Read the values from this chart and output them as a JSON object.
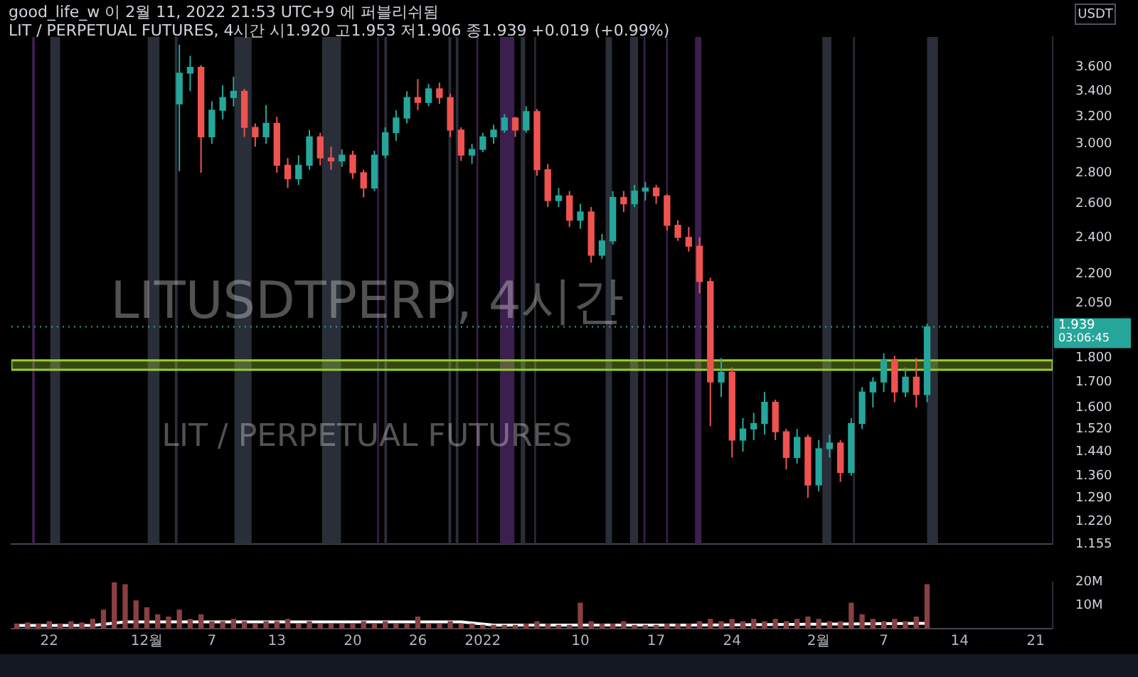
{
  "chart_data": [
    {
      "type": "candlestick",
      "title": "LITUSDTPERP, 4시간",
      "subtitle": "LIT / PERPETUAL FUTURES",
      "ylabel": "USDT",
      "annotations": [
        "good_life_w 이 2월 11, 2022 21:53 UTC+9 에 퍼블리쉬됨",
        "LIT / PERPETUAL FUTURES, 4시간 시1.920 고1.953 저1.906 종1.939 +0.019 (+0.99%)"
      ],
      "x": [
        "2021-12-04",
        "2021-12-05",
        "2021-12-06",
        "2021-12-07",
        "2021-12-08",
        "2021-12-09",
        "2021-12-10",
        "2021-12-11",
        "2021-12-12",
        "2021-12-13",
        "2021-12-14",
        "2021-12-15",
        "2021-12-16",
        "2021-12-17",
        "2021-12-18",
        "2021-12-19",
        "2021-12-20",
        "2021-12-21",
        "2021-12-22",
        "2021-12-23",
        "2021-12-24",
        "2021-12-25",
        "2021-12-26",
        "2021-12-27",
        "2021-12-28",
        "2021-12-29",
        "2021-12-30",
        "2021-12-31",
        "2022-01-01",
        "2022-01-02",
        "2022-01-03",
        "2022-01-04",
        "2022-01-05",
        "2022-01-06",
        "2022-01-07",
        "2022-01-08",
        "2022-01-09",
        "2022-01-10",
        "2022-01-11",
        "2022-01-12",
        "2022-01-13",
        "2022-01-14",
        "2022-01-15",
        "2022-01-16",
        "2022-01-17",
        "2022-01-18",
        "2022-01-19",
        "2022-01-20",
        "2022-01-21",
        "2022-01-22",
        "2022-01-23",
        "2022-01-24",
        "2022-01-25",
        "2022-01-26",
        "2022-01-27",
        "2022-01-28",
        "2022-01-29",
        "2022-01-30",
        "2022-01-31",
        "2022-02-01",
        "2022-02-02",
        "2022-02-03",
        "2022-02-04",
        "2022-02-05",
        "2022-02-06",
        "2022-02-07",
        "2022-02-08",
        "2022-02-09",
        "2022-02-10",
        "2022-02-11"
      ],
      "ohlc": [
        [
          3.3,
          3.8,
          2.81,
          3.55
        ],
        [
          3.55,
          3.7,
          3.4,
          3.6
        ],
        [
          3.6,
          3.62,
          2.8,
          3.05
        ],
        [
          3.05,
          3.32,
          3.0,
          3.25
        ],
        [
          3.25,
          3.45,
          3.18,
          3.35
        ],
        [
          3.35,
          3.52,
          3.28,
          3.4
        ],
        [
          3.4,
          3.42,
          3.05,
          3.12
        ],
        [
          3.12,
          3.15,
          2.98,
          3.05
        ],
        [
          3.05,
          3.29,
          3.0,
          3.15
        ],
        [
          3.15,
          3.2,
          2.8,
          2.85
        ],
        [
          2.85,
          2.9,
          2.7,
          2.76
        ],
        [
          2.76,
          2.92,
          2.72,
          2.85
        ],
        [
          2.85,
          3.1,
          2.82,
          3.05
        ],
        [
          3.05,
          3.08,
          2.85,
          2.9
        ],
        [
          2.9,
          2.98,
          2.82,
          2.88
        ],
        [
          2.88,
          2.96,
          2.84,
          2.92
        ],
        [
          2.92,
          2.95,
          2.76,
          2.8
        ],
        [
          2.8,
          2.82,
          2.64,
          2.7
        ],
        [
          2.7,
          2.95,
          2.68,
          2.92
        ],
        [
          2.92,
          3.12,
          2.9,
          3.08
        ],
        [
          3.08,
          3.25,
          3.02,
          3.19
        ],
        [
          3.19,
          3.4,
          3.15,
          3.35
        ],
        [
          3.35,
          3.5,
          3.25,
          3.31
        ],
        [
          3.31,
          3.46,
          3.28,
          3.42
        ],
        [
          3.42,
          3.47,
          3.3,
          3.35
        ],
        [
          3.35,
          3.38,
          3.05,
          3.1
        ],
        [
          3.1,
          3.12,
          2.88,
          2.92
        ],
        [
          2.92,
          3.0,
          2.86,
          2.96
        ],
        [
          2.96,
          3.08,
          2.94,
          3.05
        ],
        [
          3.05,
          3.14,
          3.0,
          3.1
        ],
        [
          3.1,
          3.22,
          3.08,
          3.19
        ],
        [
          3.19,
          3.2,
          3.05,
          3.1
        ],
        [
          3.1,
          3.28,
          3.08,
          3.24
        ],
        [
          3.24,
          3.26,
          2.78,
          2.82
        ],
        [
          2.82,
          2.86,
          2.58,
          2.62
        ],
        [
          2.62,
          2.7,
          2.58,
          2.65
        ],
        [
          2.65,
          2.68,
          2.46,
          2.5
        ],
        [
          2.5,
          2.6,
          2.45,
          2.55
        ],
        [
          2.55,
          2.58,
          2.26,
          2.3
        ],
        [
          2.3,
          2.42,
          2.28,
          2.38
        ],
        [
          2.38,
          2.68,
          2.36,
          2.64
        ],
        [
          2.64,
          2.68,
          2.55,
          2.6
        ],
        [
          2.6,
          2.72,
          2.58,
          2.68
        ],
        [
          2.68,
          2.74,
          2.62,
          2.7
        ],
        [
          2.7,
          2.72,
          2.6,
          2.65
        ],
        [
          2.65,
          2.66,
          2.44,
          2.47
        ],
        [
          2.47,
          2.5,
          2.38,
          2.4
        ],
        [
          2.4,
          2.46,
          2.32,
          2.35
        ],
        [
          2.35,
          2.4,
          2.1,
          2.16
        ],
        [
          2.16,
          2.18,
          1.53,
          1.7
        ],
        [
          1.7,
          1.8,
          1.64,
          1.74
        ],
        [
          1.74,
          1.76,
          1.42,
          1.48
        ],
        [
          1.48,
          1.56,
          1.44,
          1.52
        ],
        [
          1.52,
          1.58,
          1.48,
          1.54
        ],
        [
          1.54,
          1.66,
          1.5,
          1.62
        ],
        [
          1.62,
          1.63,
          1.48,
          1.51
        ],
        [
          1.51,
          1.52,
          1.38,
          1.42
        ],
        [
          1.42,
          1.52,
          1.4,
          1.49
        ],
        [
          1.49,
          1.5,
          1.29,
          1.33
        ],
        [
          1.33,
          1.48,
          1.31,
          1.45
        ],
        [
          1.45,
          1.5,
          1.42,
          1.47
        ],
        [
          1.47,
          1.48,
          1.34,
          1.37
        ],
        [
          1.37,
          1.56,
          1.36,
          1.54
        ],
        [
          1.54,
          1.68,
          1.52,
          1.66
        ],
        [
          1.66,
          1.72,
          1.6,
          1.7
        ],
        [
          1.7,
          1.82,
          1.66,
          1.79
        ],
        [
          1.79,
          1.81,
          1.62,
          1.66
        ],
        [
          1.66,
          1.76,
          1.64,
          1.72
        ],
        [
          1.72,
          1.8,
          1.6,
          1.65
        ],
        [
          1.65,
          1.953,
          1.62,
          1.939
        ]
      ],
      "colors": [
        "#26a69a",
        "#26a69a",
        "#ef5350",
        "#26a69a",
        "#26a69a",
        "#26a69a",
        "#ef5350",
        "#ef5350",
        "#26a69a",
        "#ef5350",
        "#ef5350",
        "#26a69a",
        "#26a69a",
        "#ef5350",
        "#ef5350",
        "#26a69a",
        "#ef5350",
        "#ef5350",
        "#26a69a",
        "#26a69a",
        "#26a69a",
        "#26a69a",
        "#ef5350",
        "#26a69a",
        "#ef5350",
        "#ef5350",
        "#ef5350",
        "#26a69a",
        "#26a69a",
        "#26a69a",
        "#26a69a",
        "#ef5350",
        "#26a69a",
        "#ef5350",
        "#ef5350",
        "#26a69a",
        "#ef5350",
        "#26a69a",
        "#ef5350",
        "#26a69a",
        "#26a69a",
        "#ef5350",
        "#26a69a",
        "#26a69a",
        "#ef5350",
        "#ef5350",
        "#ef5350",
        "#ef5350",
        "#ef5350",
        "#ef5350",
        "#26a69a",
        "#ef5350",
        "#26a69a",
        "#26a69a",
        "#26a69a",
        "#ef5350",
        "#ef5350",
        "#26a69a",
        "#ef5350",
        "#26a69a",
        "#26a69a",
        "#ef5350",
        "#26a69a",
        "#26a69a",
        "#26a69a",
        "#26a69a",
        "#ef5350",
        "#26a69a",
        "#ef5350",
        "#26a69a"
      ],
      "xlim": [
        "2021-11-18T12:00",
        "2022-02-22T14:00"
      ],
      "ylim": [
        1.155,
        3.87
      ],
      "log": "y",
      "yticks": [
        1.155,
        {
          "value": 1.22,
          "label": "1.220"
        },
        {
          "value": 1.29,
          "label": "1.290"
        },
        {
          "value": 1.36,
          "label": "1.360"
        },
        {
          "value": 1.44,
          "label": "1.440"
        },
        {
          "value": 1.52,
          "label": "1.520"
        },
        {
          "value": 1.6,
          "label": "1.600"
        },
        {
          "value": 1.7,
          "label": "1.700"
        },
        {
          "value": 1.8,
          "label": "1.800"
        },
        {
          "value": 2.05,
          "label": "2.050"
        },
        {
          "value": 2.2,
          "label": "2.200"
        },
        {
          "value": 2.4,
          "label": "2.400"
        },
        {
          "value": 2.6,
          "label": "2.600"
        },
        {
          "value": 2.8,
          "label": "2.800"
        },
        {
          "value": 3,
          "label": "3.000"
        },
        {
          "value": 3.2,
          "label": "3.200"
        },
        {
          "value": 3.4,
          "label": "3.400"
        },
        {
          "value": 3.6,
          "label": "3.600"
        }
      ],
      "tick_labels": "y",
      "ref_lines": [
        {
          "axis": "y",
          "value": 1.939,
          "label": "1.939\n03:06:45",
          "color": "#26a69a",
          "line_style": "dotted"
        }
      ],
      "bands": [
        {
          "axis": "x",
          "from": "2021-11-20T10:00",
          "to": "2021-11-20T16:00",
          "color": "#3c1f4e"
        },
        {
          "axis": "x",
          "from": "2021-11-22T02:00",
          "to": "2021-11-23T00:00",
          "color": "#2a2e39"
        },
        {
          "axis": "x",
          "from": "2021-12-01T02:00",
          "to": "2021-12-02T04:00",
          "color": "#2a2e39"
        },
        {
          "axis": "x",
          "from": "2021-12-03T14:00",
          "to": "2021-12-03T20:00",
          "color": "#2a2e39"
        },
        {
          "axis": "x",
          "from": "2021-12-09T02:00",
          "to": "2021-12-10T16:00",
          "color": "#2a2e39"
        },
        {
          "axis": "x",
          "from": "2021-12-17T04:00",
          "to": "2021-12-18T22:00",
          "color": "#2a2e39"
        },
        {
          "axis": "x",
          "from": "2021-12-22T06:00",
          "to": "2021-12-22T10:00",
          "color": "#3c1f4e"
        },
        {
          "axis": "x",
          "from": "2021-12-22T22:00",
          "to": "2021-12-23T04:00",
          "color": "#2a2e39"
        },
        {
          "axis": "x",
          "from": "2021-12-28T20:00",
          "to": "2021-12-29T02:00",
          "color": "#2a2e39"
        },
        {
          "axis": "x",
          "from": "2021-12-29T12:00",
          "to": "2021-12-29T18:00",
          "color": "#2a2e39"
        },
        {
          "axis": "x",
          "from": "2021-12-31T10:00",
          "to": "2021-12-31T14:00",
          "color": "#3c1f4e"
        },
        {
          "axis": "x",
          "from": "2022-01-02T14:00",
          "to": "2022-01-03T22:00",
          "color": "#3c1f4e"
        },
        {
          "axis": "x",
          "from": "2022-01-04T12:00",
          "to": "2022-01-04T22:00",
          "color": "#2a2e39"
        },
        {
          "axis": "x",
          "from": "2022-01-05T18:00",
          "to": "2022-01-05T22:00",
          "color": "#2a2e39"
        },
        {
          "axis": "x",
          "from": "2022-01-12T08:00",
          "to": "2022-01-12T22:00",
          "color": "#2a2e39"
        },
        {
          "axis": "x",
          "from": "2022-01-14T14:00",
          "to": "2022-01-15T08:00",
          "color": "#2a2e39"
        },
        {
          "axis": "x",
          "from": "2022-01-15T20:00",
          "to": "2022-01-16T00:00",
          "color": "#3c1f4e"
        },
        {
          "axis": "x",
          "from": "2022-01-17T22:00",
          "to": "2022-01-18T02:00",
          "color": "#3c1f4e"
        },
        {
          "axis": "x",
          "from": "2022-01-20T14:00",
          "to": "2022-01-21T04:00",
          "color": "#3c1f4e"
        },
        {
          "axis": "x",
          "from": "2022-02-01T08:00",
          "to": "2022-02-02T04:00",
          "color": "#2a2e39"
        },
        {
          "axis": "x",
          "from": "2022-02-04T04:00",
          "to": "2022-02-04T08:00",
          "color": "#2a2e39"
        },
        {
          "axis": "x",
          "from": "2022-02-11T00:00",
          "to": "2022-02-12T00:00",
          "color": "#2a2e39"
        },
        {
          "axis": "y",
          "from": 1.75,
          "to": 1.79,
          "color": "#9acd32"
        }
      ]
    },
    {
      "type": "bar",
      "series": [
        {
          "color": "#8a3f42",
          "x": [
            "2021-11-19",
            "2021-11-20",
            "2021-11-21",
            "2021-11-22",
            "2021-11-23",
            "2021-11-24",
            "2021-11-25",
            "2021-11-26",
            "2021-11-27",
            "2021-11-28",
            "2021-11-29",
            "2021-11-30",
            "2021-12-01",
            "2021-12-02",
            "2021-12-03",
            "2021-12-04",
            "2021-12-05",
            "2021-12-06",
            "2021-12-07",
            "2021-12-08",
            "2021-12-09",
            "2021-12-10",
            "2021-12-11",
            "2021-12-12",
            "2021-12-13",
            "2021-12-14",
            "2021-12-15",
            "2021-12-16",
            "2021-12-17",
            "2021-12-18",
            "2021-12-19",
            "2021-12-20",
            "2021-12-21",
            "2021-12-22",
            "2021-12-23",
            "2021-12-24",
            "2021-12-25",
            "2021-12-26",
            "2021-12-27",
            "2021-12-28",
            "2021-12-29",
            "2021-12-30",
            "2021-12-31",
            "2022-01-01",
            "2022-01-02",
            "2022-01-03",
            "2022-01-04",
            "2022-01-05",
            "2022-01-06",
            "2022-01-07",
            "2022-01-08",
            "2022-01-09",
            "2022-01-10",
            "2022-01-11",
            "2022-01-12",
            "2022-01-13",
            "2022-01-14",
            "2022-01-15",
            "2022-01-16",
            "2022-01-17",
            "2022-01-18",
            "2022-01-19",
            "2022-01-20",
            "2022-01-21",
            "2022-01-22",
            "2022-01-23",
            "2022-01-24",
            "2022-01-25",
            "2022-01-26",
            "2022-01-27",
            "2022-01-28",
            "2022-01-29",
            "2022-01-30",
            "2022-01-31",
            "2022-02-01",
            "2022-02-02",
            "2022-02-03",
            "2022-02-04",
            "2022-02-05",
            "2022-02-06",
            "2022-02-07",
            "2022-02-08",
            "2022-02-09",
            "2022-02-10",
            "2022-02-11"
          ],
          "values": [
            2,
            2.5,
            2,
            3,
            2,
            3,
            2.5,
            4,
            8,
            20,
            19,
            12,
            9,
            6,
            5,
            8,
            4,
            6,
            3,
            3,
            4,
            3,
            2,
            3,
            3,
            4,
            2,
            3,
            2,
            2,
            2,
            2,
            3,
            2,
            3,
            2,
            2,
            5,
            2,
            2,
            3,
            2,
            2,
            1.5,
            1.5,
            1.5,
            1.5,
            2,
            3,
            2,
            1.5,
            1.5,
            11,
            3,
            2,
            2,
            3,
            1.5,
            1.5,
            1.5,
            2,
            2,
            2,
            3,
            4,
            3,
            4,
            3,
            4,
            3,
            4,
            3,
            4,
            5,
            4,
            3,
            3,
            11,
            6,
            4,
            3,
            4,
            3,
            5,
            19
          ]
        },
        {
          "type": "line",
          "color": "#ffffff",
          "x": [
            "2021-11-19",
            "2021-11-26",
            "2021-11-29",
            "2021-12-30",
            "2022-01-02",
            "2022-01-20",
            "2022-02-11"
          ],
          "values": [
            1.4,
            1.4,
            2.9,
            2.9,
            1.5,
            1.5,
            2.3
          ]
        }
      ],
      "xlim": [
        "2021-11-18T12:00",
        "2022-02-22T14:00"
      ],
      "xticks": [
        {
          "value": "2021-11-22",
          "label": "22"
        },
        {
          "value": "2021-12-01",
          "label": "12월"
        },
        {
          "value": "2021-12-07",
          "label": "7"
        },
        {
          "value": "2021-12-13",
          "label": "13"
        },
        {
          "value": "2021-12-20",
          "label": "20"
        },
        {
          "value": "2021-12-26",
          "label": "26"
        },
        {
          "value": "2022-01-01",
          "label": "2022"
        },
        {
          "value": "2022-01-10",
          "label": "10"
        },
        {
          "value": "2022-01-17",
          "label": "17"
        },
        {
          "value": "2022-01-24",
          "label": "24"
        },
        {
          "value": "2022-02-01",
          "label": "2월"
        },
        {
          "value": "2022-02-07",
          "label": "7"
        },
        {
          "value": "2022-02-14",
          "label": "14"
        },
        {
          "value": "2022-02-21",
          "label": "21"
        }
      ],
      "ylim": [
        0,
        20
      ],
      "yticks": [
        {
          "value": 10,
          "label": "10M"
        },
        {
          "value": 20,
          "label": "20M"
        }
      ]
    }
  ]
}
